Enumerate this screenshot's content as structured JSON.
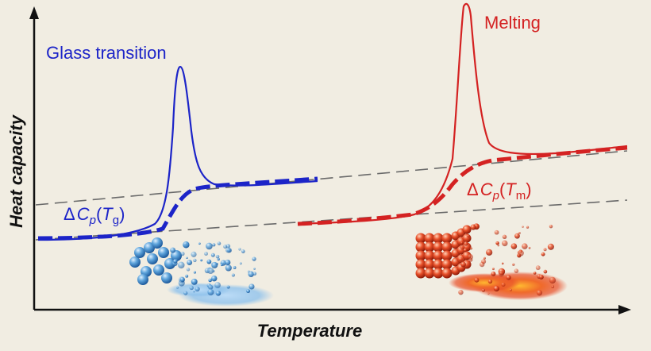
{
  "diagram": {
    "x_axis_label": "Temperature",
    "y_axis_label": "Heat capacity",
    "glass_transition": {
      "title": "Glass transition",
      "delta_cp": {
        "delta": "Δ",
        "c": "C",
        "sub_p": "p",
        "open": "(",
        "t": "T",
        "sub": "g",
        "close": ")"
      },
      "color": "#1c24c8"
    },
    "melting": {
      "title": "Melting",
      "delta_cp": {
        "delta": "Δ",
        "c": "C",
        "sub_p": "p",
        "open": "(",
        "t": "T",
        "sub": "m",
        "close": ")"
      },
      "color": "#d42222"
    },
    "axis_color": "#111111",
    "guide_line_color": "#6a6a6a"
  }
}
